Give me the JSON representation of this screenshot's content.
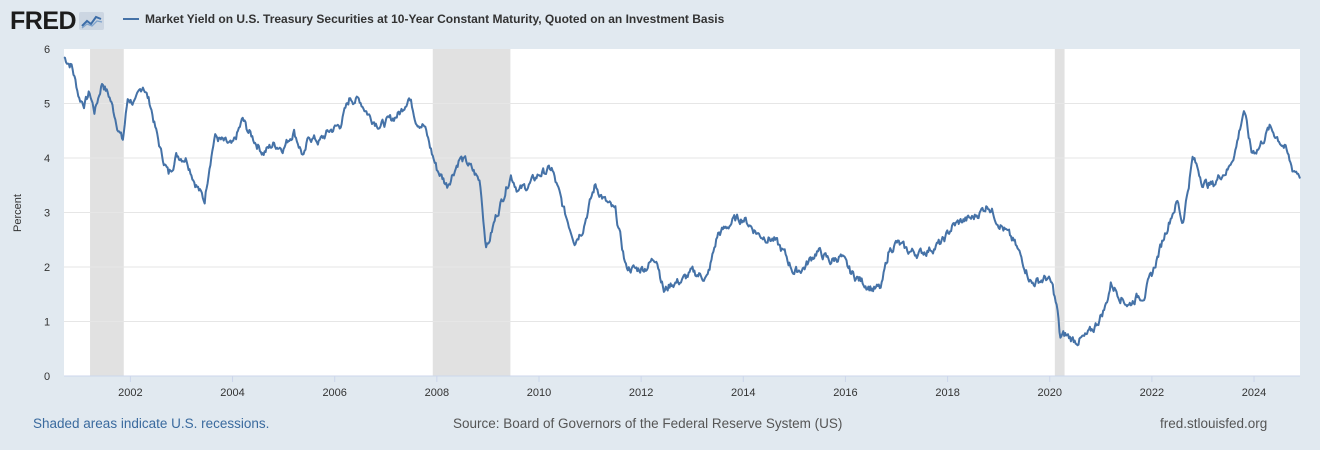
{
  "header": {
    "logo_text": "FRED",
    "logo_icon": "chart-line-icon"
  },
  "footer": {
    "recession_note": "Shaded areas indicate U.S. recessions.",
    "source": "Source: Board of Governors of the Federal Reserve System (US)",
    "site": "fred.stlouisfed.org"
  },
  "colors": {
    "series": "#4572a7",
    "background": "#e1e9f0",
    "plot_bg": "#ffffff",
    "recession": "#e1e1e1",
    "link": "#3a6a9e"
  },
  "chart_data": {
    "type": "line",
    "title": "Market Yield on U.S. Treasury Securities at 10-Year Constant Maturity, Quoted on an Investment Basis",
    "xlabel": "",
    "ylabel": "Percent",
    "xlim": [
      2000.7,
      2024.9
    ],
    "ylim": [
      0,
      6
    ],
    "y_ticks": [
      0,
      1,
      2,
      3,
      4,
      5,
      6
    ],
    "x_ticks": [
      2002,
      2004,
      2006,
      2008,
      2010,
      2012,
      2014,
      2016,
      2018,
      2020,
      2022,
      2024
    ],
    "grid": true,
    "legend_position": "top-left",
    "recessions": [
      {
        "start": 2001.21,
        "end": 2001.87
      },
      {
        "start": 2007.92,
        "end": 2009.44
      },
      {
        "start": 2020.1,
        "end": 2020.29
      }
    ],
    "series": [
      {
        "name": "Market Yield on U.S. Treasury Securities at 10-Year Constant Maturity, Quoted on an Investment Basis",
        "x": [
          2000.7,
          2000.85,
          2001.0,
          2001.1,
          2001.2,
          2001.3,
          2001.45,
          2001.6,
          2001.75,
          2001.85,
          2001.95,
          2002.1,
          2002.25,
          2002.4,
          2002.5,
          2002.6,
          2002.75,
          2002.9,
          2003.1,
          2003.25,
          2003.45,
          2003.55,
          2003.65,
          2003.8,
          2004.0,
          2004.2,
          2004.3,
          2004.45,
          2004.6,
          2004.8,
          2005.0,
          2005.2,
          2005.4,
          2005.5,
          2005.7,
          2005.9,
          2006.1,
          2006.3,
          2006.5,
          2006.7,
          2006.9,
          2007.1,
          2007.3,
          2007.45,
          2007.6,
          2007.75,
          2007.9,
          2008.0,
          2008.2,
          2008.45,
          2008.6,
          2008.75,
          2008.85,
          2008.95,
          2009.0,
          2009.15,
          2009.3,
          2009.45,
          2009.6,
          2009.8,
          2010.0,
          2010.25,
          2010.5,
          2010.7,
          2010.85,
          2011.1,
          2011.3,
          2011.5,
          2011.6,
          2011.7,
          2011.9,
          2012.1,
          2012.3,
          2012.45,
          2012.6,
          2012.8,
          2013.0,
          2013.3,
          2013.5,
          2013.65,
          2013.8,
          2014.0,
          2014.3,
          2014.6,
          2014.8,
          2015.0,
          2015.2,
          2015.45,
          2015.7,
          2015.9,
          2016.1,
          2016.3,
          2016.55,
          2016.7,
          2016.85,
          2017.0,
          2017.2,
          2017.45,
          2017.7,
          2017.9,
          2018.1,
          2018.3,
          2018.5,
          2018.8,
          2018.95,
          2019.1,
          2019.3,
          2019.5,
          2019.65,
          2019.8,
          2019.95,
          2020.05,
          2020.15,
          2020.2,
          2020.3,
          2020.5,
          2020.7,
          2020.85,
          2021.0,
          2021.1,
          2021.2,
          2021.4,
          2021.55,
          2021.7,
          2021.85,
          2022.0,
          2022.15,
          2022.25,
          2022.4,
          2022.5,
          2022.6,
          2022.8,
          2022.9,
          2023.0,
          2023.2,
          2023.35,
          2023.5,
          2023.65,
          2023.8,
          2023.95,
          2024.1,
          2024.3,
          2024.45,
          2024.6,
          2024.75,
          2024.85,
          2024.9
        ],
        "values": [
          5.85,
          5.7,
          5.1,
          5.0,
          5.2,
          4.85,
          5.4,
          5.1,
          4.6,
          4.3,
          5.1,
          5.0,
          5.35,
          4.95,
          4.5,
          4.1,
          3.7,
          4.05,
          4.0,
          3.6,
          3.2,
          3.9,
          4.4,
          4.3,
          4.2,
          4.7,
          4.5,
          4.3,
          4.1,
          4.25,
          4.2,
          4.5,
          4.0,
          4.4,
          4.3,
          4.5,
          4.6,
          5.1,
          5.05,
          4.75,
          4.6,
          4.7,
          4.85,
          5.15,
          4.7,
          4.6,
          4.1,
          3.8,
          3.5,
          4.0,
          3.9,
          3.7,
          3.55,
          2.5,
          2.4,
          2.9,
          3.3,
          3.7,
          3.4,
          3.5,
          3.7,
          3.8,
          3.0,
          2.5,
          2.7,
          3.5,
          3.2,
          3.0,
          2.5,
          2.0,
          1.95,
          2.0,
          2.2,
          1.55,
          1.7,
          1.75,
          1.9,
          1.8,
          2.6,
          2.7,
          2.85,
          2.9,
          2.6,
          2.5,
          2.25,
          1.9,
          2.0,
          2.3,
          2.1,
          2.2,
          1.9,
          1.75,
          1.6,
          1.6,
          2.3,
          2.45,
          2.3,
          2.25,
          2.35,
          2.45,
          2.75,
          2.85,
          2.9,
          3.15,
          2.9,
          2.7,
          2.45,
          2.05,
          1.7,
          1.75,
          1.8,
          1.65,
          1.2,
          0.7,
          0.75,
          0.65,
          0.7,
          0.85,
          1.1,
          1.3,
          1.7,
          1.45,
          1.3,
          1.45,
          1.5,
          1.85,
          2.3,
          2.6,
          3.0,
          3.2,
          2.8,
          4.0,
          3.8,
          3.55,
          3.5,
          3.7,
          3.8,
          4.2,
          4.9,
          4.1,
          4.2,
          4.55,
          4.4,
          4.2,
          3.8,
          3.75,
          3.7
        ]
      }
    ]
  }
}
